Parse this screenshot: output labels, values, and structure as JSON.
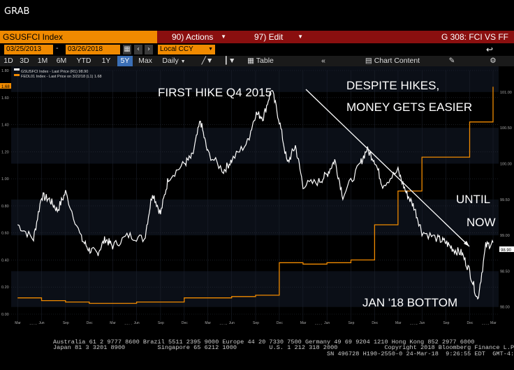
{
  "window_title": "GRAB",
  "toolbar": {
    "ticker": "GSUSFCI Index",
    "actions": "90) Actions",
    "edit": "97) Edit",
    "page": "G 308: FCI VS FF"
  },
  "controls": {
    "start_date": "03/25/2013",
    "end_date": "03/26/2018",
    "currency": "Local CCY",
    "periods": [
      "1D",
      "3D",
      "1M",
      "6M",
      "YTD",
      "1Y",
      "5Y",
      "Max"
    ],
    "active_period": "5Y",
    "frequency": "Daily",
    "table_label": "Table",
    "chart_content_label": "Chart Content"
  },
  "legend": [
    "GSUSFCI Index - Last Price (R1)   98.90",
    "FEDL01 Index - Last Price on 3/22/18 (L1)  1.68"
  ],
  "annotations": {
    "first_hike": "FIRST HIKE Q4 2015",
    "despite_1": "DESPITE HIKES,",
    "despite_2": "MONEY GETS EASIER",
    "until": "UNTIL",
    "now": "NOW",
    "bottom": "JAN '18 BOTTOM"
  },
  "colors": {
    "fci_line": "#ffffff",
    "ff_line": "#f08a00",
    "accent_orange": "#f08a00",
    "header_red": "#8a0f0f"
  },
  "chart_data": {
    "type": "line",
    "title": "",
    "x_ticks": [
      "Mar",
      "Jun",
      "Sep",
      "Dec",
      "Mar",
      "Jun",
      "Sep",
      "Dec",
      "Mar",
      "Jun",
      "Sep",
      "Dec",
      "Mar",
      "Jun",
      "Sep",
      "Dec",
      "Mar",
      "Jun",
      "Sep",
      "Dec",
      "Mar"
    ],
    "year_ticks": [
      "2013",
      "2014",
      "2015",
      "2016",
      "2017",
      "2018"
    ],
    "left_axis": {
      "ticks": [
        "0.00",
        "0.20",
        "0.40",
        "0.60",
        "0.80",
        "1.00",
        "1.20",
        "1.40",
        "1.60",
        "1.80"
      ],
      "ylim": [
        0,
        1.8
      ]
    },
    "right_axis": {
      "ticks": [
        "98.00",
        "98.50",
        "99.00",
        "99.50",
        "100.00",
        "100.50",
        "101.00"
      ],
      "ylim": [
        97.9,
        101.3
      ]
    },
    "left_last_label": "1.68",
    "right_last_label": "98.90",
    "series": [
      {
        "name": "GSUSFCI Index - Last Price",
        "axis": "right",
        "x": [
          "2013-03",
          "2013-05",
          "2013-06",
          "2013-07",
          "2013-08",
          "2013-09",
          "2013-11",
          "2013-12",
          "2014-01",
          "2014-02",
          "2014-03",
          "2014-05",
          "2014-07",
          "2014-08",
          "2014-09",
          "2014-10",
          "2014-12",
          "2015-01",
          "2015-02",
          "2015-03",
          "2015-05",
          "2015-06",
          "2015-08",
          "2015-09",
          "2015-10",
          "2015-11",
          "2015-12",
          "2016-01",
          "2016-02",
          "2016-03",
          "2016-05",
          "2016-06",
          "2016-07",
          "2016-08",
          "2016-10",
          "2016-11",
          "2016-12",
          "2017-01",
          "2017-03",
          "2017-04",
          "2017-05",
          "2017-06",
          "2017-08",
          "2017-09",
          "2017-10",
          "2017-11",
          "2017-12",
          "2018-01",
          "2018-02",
          "2018-03"
        ],
        "values": [
          99.15,
          98.95,
          99.55,
          99.5,
          99.35,
          99.6,
          98.95,
          98.8,
          98.75,
          98.95,
          98.85,
          99.0,
          98.95,
          99.6,
          99.3,
          99.8,
          100.0,
          100.1,
          100.6,
          100.15,
          99.9,
          100.05,
          100.3,
          100.7,
          100.65,
          101.05,
          100.6,
          100.0,
          100.25,
          99.7,
          99.75,
          99.85,
          100.05,
          99.55,
          99.95,
          100.2,
          100.05,
          99.7,
          99.9,
          99.6,
          99.4,
          99.05,
          98.95,
          98.9,
          98.8,
          98.75,
          98.5,
          98.1,
          98.85,
          98.9
        ]
      },
      {
        "name": "FEDL01 Index - Last Price",
        "axis": "left",
        "x": [
          "2013-03",
          "2013-06",
          "2013-09",
          "2013-12",
          "2014-03",
          "2014-06",
          "2014-09",
          "2014-12",
          "2015-03",
          "2015-06",
          "2015-09",
          "2015-12",
          "2015-12",
          "2016-03",
          "2016-06",
          "2016-09",
          "2016-12",
          "2016-12",
          "2017-03",
          "2017-03",
          "2017-06",
          "2017-06",
          "2017-09",
          "2017-12",
          "2017-12",
          "2018-03"
        ],
        "values": [
          0.12,
          0.1,
          0.09,
          0.08,
          0.08,
          0.09,
          0.09,
          0.12,
          0.12,
          0.13,
          0.14,
          0.14,
          0.38,
          0.37,
          0.38,
          0.4,
          0.41,
          0.66,
          0.66,
          0.91,
          0.91,
          1.16,
          1.16,
          1.16,
          1.42,
          1.68
        ]
      }
    ],
    "grid": true,
    "legend_position": "top-left"
  },
  "footer": {
    "line1": "Australia 61 2 9777 8600 Brazil 5511 2395 9000 Europe 44 20 7330 7500 Germany 49 69 9204 1210 Hong Kong 852 2977 6000",
    "line2": "Japan 81 3 3201 8900         Singapore 65 6212 1000         U.S. 1 212 318 2000             Copyright 2018 Bloomberg Finance L.P.",
    "line3": "SN 496728 H190-2550-0 24-Mar-18  9:26:55 EDT  GMT-4:00"
  }
}
